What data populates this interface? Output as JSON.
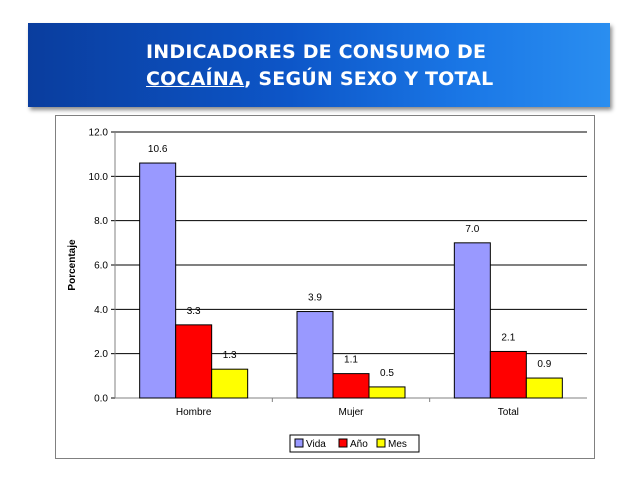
{
  "slide": {
    "title_line1": "INDICADORES DE CONSUMO DE",
    "title_line2_underlined": "COCAÍNA",
    "title_line2_rest": ", SEGÚN SEXO Y TOTAL"
  },
  "colors": {
    "vida": "#9999ff",
    "ano": "#ff0000",
    "mes": "#ffff00"
  },
  "chart_data": {
    "type": "bar",
    "title": "",
    "xlabel": "",
    "ylabel": "Porcentaje",
    "ylim": [
      0,
      12
    ],
    "yticks": [
      "0.0",
      "2.0",
      "4.0",
      "6.0",
      "8.0",
      "10.0",
      "12.0"
    ],
    "categories": [
      "Hombre",
      "Mujer",
      "Total"
    ],
    "series": [
      {
        "name": "Vida",
        "values": [
          10.6,
          3.9,
          7.0
        ],
        "labels": [
          "10.6",
          "3.9",
          "7.0"
        ],
        "color": "#9999ff"
      },
      {
        "name": "Año",
        "values": [
          3.3,
          1.1,
          2.1
        ],
        "labels": [
          "3.3",
          "1.1",
          "2.1"
        ],
        "color": "#ff0000"
      },
      {
        "name": "Mes",
        "values": [
          1.3,
          0.5,
          0.9
        ],
        "labels": [
          "1.3",
          "0.5",
          "0.9"
        ],
        "color": "#ffff00"
      }
    ],
    "legend": "bottom-center",
    "grid": true
  }
}
